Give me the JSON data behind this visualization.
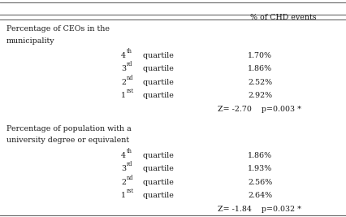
{
  "header": "% of CHD events",
  "section1_title_line1": "Percentage of CEOs in the",
  "section1_title_line2": "municipality",
  "section1_rows": [
    {
      "label": "4",
      "sup": "th",
      "suffix": " quartile",
      "value": "1.70%"
    },
    {
      "label": "3",
      "sup": "rd",
      "suffix": " quartile",
      "value": "1.86%"
    },
    {
      "label": "2",
      "sup": "nd",
      "suffix": " quartile",
      "value": "2.52%"
    },
    {
      "label": "1",
      "sup": "rst",
      "suffix": " quartile",
      "value": "2.92%"
    }
  ],
  "section1_stat": "Z= -2.70    p=0.003 *",
  "section2_title_line1": "Percentage of population with a",
  "section2_title_line2": "university degree or equivalent",
  "section2_rows": [
    {
      "label": "4",
      "sup": "th",
      "suffix": " quartile",
      "value": "1.86%"
    },
    {
      "label": "3",
      "sup": "rd",
      "suffix": " quartile",
      "value": "1.93%"
    },
    {
      "label": "2",
      "sup": "nd",
      "suffix": " quartile",
      "value": "2.56%"
    },
    {
      "label": "1",
      "sup": "rst",
      "suffix": " quartile",
      "value": "2.64%"
    }
  ],
  "section2_stat": "Z= -1.84    p=0.032 *",
  "bg_color": "#ffffff",
  "text_color": "#1a1a1a",
  "line_color": "#555555",
  "font_size": 6.8,
  "sup_font_size": 4.8
}
